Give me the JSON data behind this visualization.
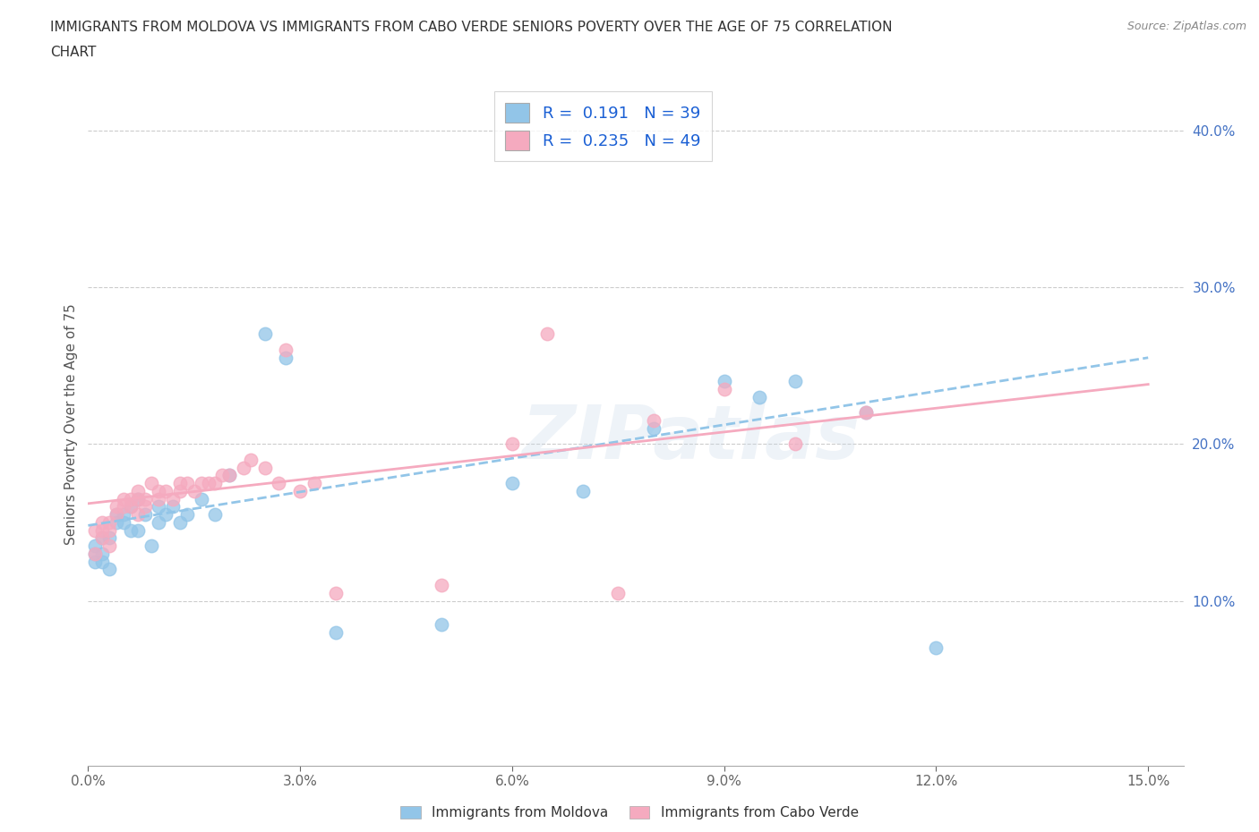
{
  "title_line1": "IMMIGRANTS FROM MOLDOVA VS IMMIGRANTS FROM CABO VERDE SENIORS POVERTY OVER THE AGE OF 75 CORRELATION",
  "title_line2": "CHART",
  "source": "Source: ZipAtlas.com",
  "ylabel": "Seniors Poverty Over the Age of 75",
  "legend_label1": "R =  0.191   N = 39",
  "legend_label2": "R =  0.235   N = 49",
  "color_blue": "#92C5E8",
  "color_pink": "#F5AABF",
  "xlim": [
    0.0,
    0.155
  ],
  "ylim": [
    -0.005,
    0.43
  ],
  "xticks": [
    0.0,
    0.03,
    0.06,
    0.09,
    0.12,
    0.15
  ],
  "xtick_labels": [
    "0.0%",
    "3.0%",
    "6.0%",
    "9.0%",
    "12.0%",
    "15.0%"
  ],
  "yticks_right": [
    0.1,
    0.2,
    0.3,
    0.4
  ],
  "ytick_labels_right": [
    "10.0%",
    "20.0%",
    "30.0%",
    "40.0%"
  ],
  "watermark": "ZIPatlas",
  "footer_label1": "Immigrants from Moldova",
  "footer_label2": "Immigrants from Cabo Verde",
  "moldova_x": [
    0.001,
    0.001,
    0.001,
    0.002,
    0.002,
    0.002,
    0.003,
    0.003,
    0.004,
    0.004,
    0.005,
    0.005,
    0.006,
    0.006,
    0.007,
    0.007,
    0.008,
    0.009,
    0.01,
    0.01,
    0.011,
    0.012,
    0.013,
    0.014,
    0.016,
    0.018,
    0.02,
    0.025,
    0.028,
    0.035,
    0.05,
    0.06,
    0.07,
    0.08,
    0.09,
    0.095,
    0.1,
    0.11,
    0.12
  ],
  "moldova_y": [
    0.125,
    0.13,
    0.135,
    0.14,
    0.13,
    0.125,
    0.14,
    0.12,
    0.15,
    0.155,
    0.15,
    0.155,
    0.16,
    0.145,
    0.165,
    0.145,
    0.155,
    0.135,
    0.15,
    0.16,
    0.155,
    0.16,
    0.15,
    0.155,
    0.165,
    0.155,
    0.18,
    0.27,
    0.255,
    0.08,
    0.085,
    0.175,
    0.17,
    0.21,
    0.24,
    0.23,
    0.24,
    0.22,
    0.07
  ],
  "caboverde_x": [
    0.001,
    0.001,
    0.002,
    0.002,
    0.002,
    0.003,
    0.003,
    0.003,
    0.004,
    0.004,
    0.005,
    0.005,
    0.006,
    0.006,
    0.007,
    0.007,
    0.007,
    0.008,
    0.008,
    0.009,
    0.01,
    0.01,
    0.011,
    0.012,
    0.013,
    0.013,
    0.014,
    0.015,
    0.016,
    0.017,
    0.018,
    0.019,
    0.02,
    0.022,
    0.023,
    0.025,
    0.027,
    0.028,
    0.03,
    0.032,
    0.035,
    0.05,
    0.06,
    0.065,
    0.075,
    0.08,
    0.09,
    0.1,
    0.11
  ],
  "caboverde_y": [
    0.13,
    0.145,
    0.14,
    0.145,
    0.15,
    0.135,
    0.145,
    0.15,
    0.155,
    0.16,
    0.16,
    0.165,
    0.16,
    0.165,
    0.155,
    0.165,
    0.17,
    0.16,
    0.165,
    0.175,
    0.165,
    0.17,
    0.17,
    0.165,
    0.17,
    0.175,
    0.175,
    0.17,
    0.175,
    0.175,
    0.175,
    0.18,
    0.18,
    0.185,
    0.19,
    0.185,
    0.175,
    0.26,
    0.17,
    0.175,
    0.105,
    0.11,
    0.2,
    0.27,
    0.105,
    0.215,
    0.235,
    0.2,
    0.22
  ],
  "trend_mol_x0": 0.0,
  "trend_mol_y0": 0.148,
  "trend_mol_x1": 0.15,
  "trend_mol_y1": 0.255,
  "trend_cv_x0": 0.0,
  "trend_cv_y0": 0.162,
  "trend_cv_x1": 0.15,
  "trend_cv_y1": 0.238
}
